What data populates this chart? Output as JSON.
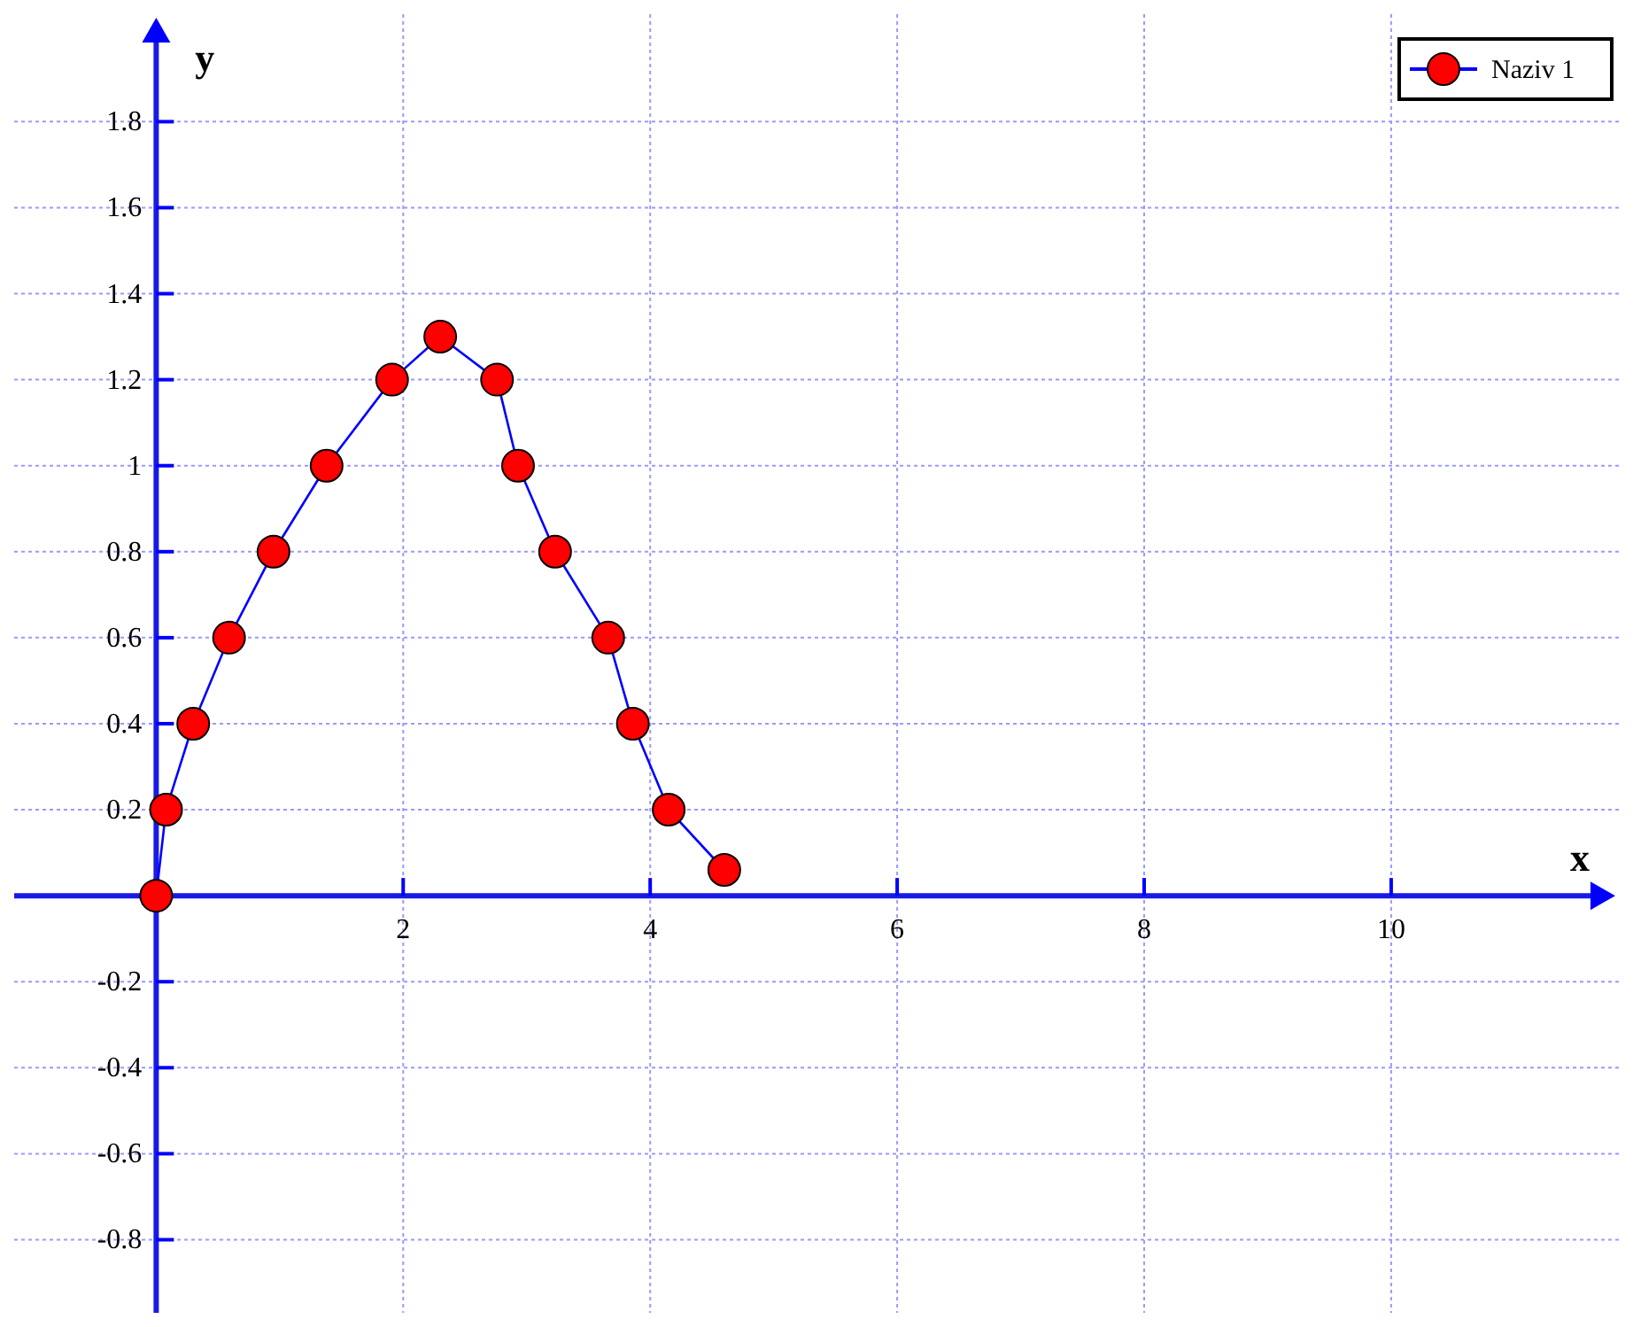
{
  "chart_data": {
    "type": "line",
    "xlabel": "x",
    "ylabel": "y",
    "xlim": [
      -1.15,
      11.7
    ],
    "ylim": [
      -0.97,
      2.05
    ],
    "xticks": [
      2,
      4,
      6,
      8,
      10
    ],
    "yticks": [
      -0.8,
      -0.6,
      -0.4,
      -0.2,
      0.2,
      0.4,
      0.6,
      0.8,
      1,
      1.2,
      1.4,
      1.6,
      1.8
    ],
    "grid": true,
    "legend": "top right",
    "marker": "circle",
    "line_style": "solid",
    "series": [
      {
        "name": "Naziv 1",
        "color": "#ff0000",
        "x": [
          0,
          0.08,
          0.3,
          0.59,
          0.95,
          1.38,
          1.91,
          2.3,
          2.76,
          2.93,
          3.23,
          3.66,
          3.86,
          4.15,
          4.6
        ],
        "values": [
          0,
          0.2,
          0.4,
          0.6,
          0.8,
          1,
          1.2,
          1.3,
          1.2,
          1,
          0.8,
          0.6,
          0.4,
          0.2,
          0.06
        ]
      }
    ]
  }
}
